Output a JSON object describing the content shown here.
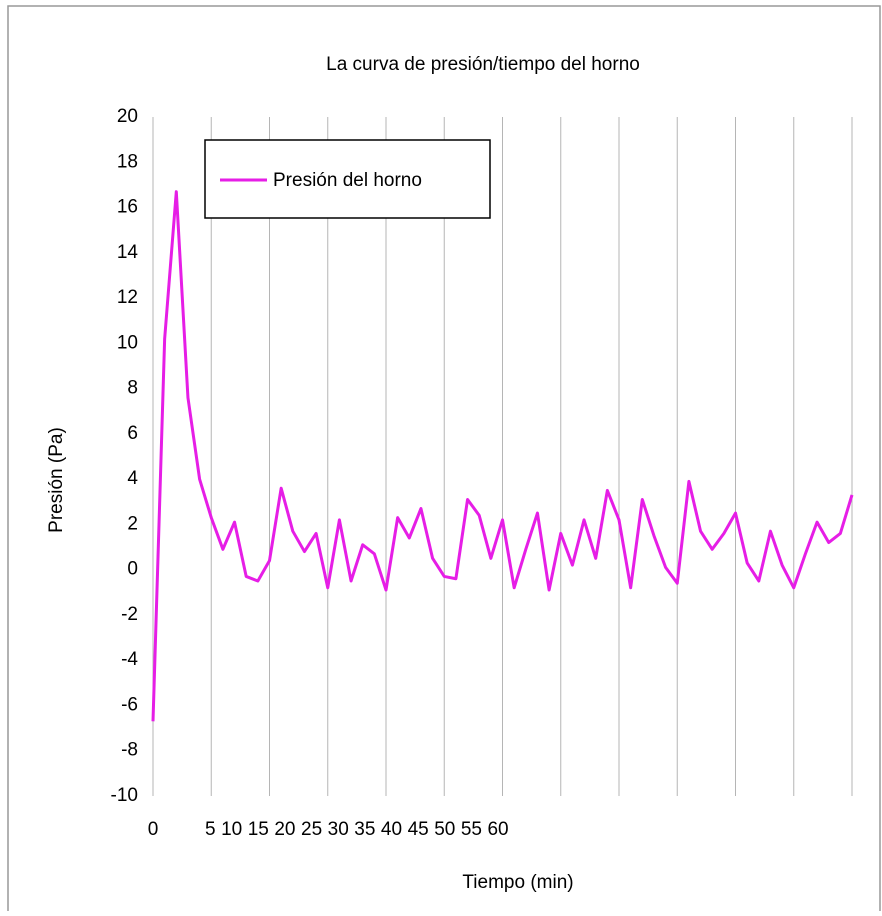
{
  "chart_data": {
    "type": "line",
    "title": "La curva de presión/tiempo del horno",
    "x_label": "Tiempo (min)",
    "y_label": "Presión (Pa)",
    "x": [
      0,
      1,
      2,
      3,
      4,
      5,
      6,
      7,
      8,
      9,
      10,
      11,
      12,
      13,
      14,
      15,
      16,
      17,
      18,
      19,
      20,
      21,
      22,
      23,
      24,
      25,
      26,
      27,
      28,
      29,
      30,
      31,
      32,
      33,
      34,
      35,
      36,
      37,
      38,
      39,
      40,
      41,
      42,
      43,
      44,
      45,
      46,
      47,
      48,
      49,
      50,
      51,
      52,
      53,
      54,
      55,
      56,
      57,
      58,
      59,
      60
    ],
    "series": [
      {
        "name": "Presión del horno",
        "color": "#e61ee6",
        "values": [
          -6.7,
          10.2,
          16.7,
          7.6,
          4,
          2.3,
          0.9,
          2.1,
          -0.3,
          -0.5,
          0.4,
          3.6,
          1.7,
          0.8,
          1.6,
          -0.8,
          2.2,
          -0.5,
          1.1,
          0.7,
          -0.9,
          2.3,
          1.4,
          2.7,
          0.5,
          -0.3,
          -0.4,
          3.1,
          2.4,
          0.5,
          2.2,
          -0.8,
          0.9,
          2.5,
          -0.9,
          1.6,
          0.2,
          2.2,
          0.5,
          3.5,
          2.2,
          -0.8,
          3.1,
          1.5,
          0.1,
          -0.6,
          3.9,
          1.7,
          0.9,
          1.6,
          2.5,
          0.3,
          -0.5,
          1.7,
          0.2,
          -0.8,
          0.7,
          2.1,
          1.2,
          1.6,
          3.3
        ]
      }
    ],
    "xlim": [
      0,
      60
    ],
    "xticks": [
      0,
      5,
      10,
      15,
      20,
      25,
      30,
      35,
      40,
      45,
      50,
      55,
      60
    ],
    "ylim": [
      -10,
      20
    ],
    "yticks": [
      -10,
      -8,
      -6,
      -4,
      -2,
      0,
      2,
      4,
      6,
      8,
      10,
      12,
      14,
      16,
      18,
      20
    ],
    "grid": "x",
    "legend": "upper left"
  }
}
